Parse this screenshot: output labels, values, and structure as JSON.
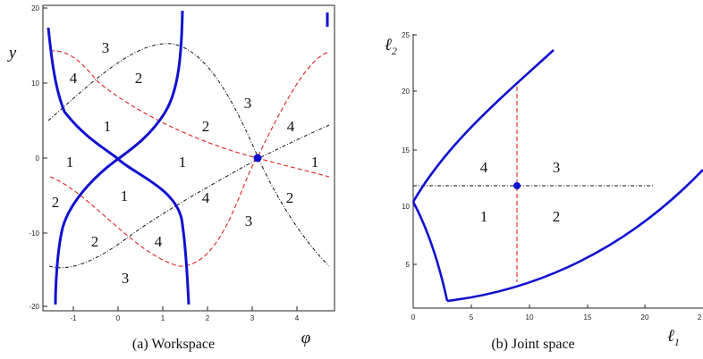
{
  "workspace": {
    "caption": "(a)  Workspace",
    "x_var": "φ",
    "y_var": "y",
    "x_ticks": [
      "-1",
      "0",
      "1",
      "2",
      "3",
      "4"
    ],
    "y_ticks": [
      "20",
      "10",
      "0",
      "-10",
      "-20"
    ],
    "regions": [
      "3",
      "4",
      "2",
      "1",
      "2",
      "3",
      "4",
      "1",
      "1",
      "1",
      "2",
      "1",
      "4",
      "2",
      "2",
      "4",
      "3",
      "3",
      "3"
    ],
    "colors": {
      "singular_curve": "#1010d0",
      "dashed_red": "#e02020",
      "dashdot_black": "#111111",
      "point": "#1010d0"
    }
  },
  "joint": {
    "caption": "(b)  Joint space",
    "x_var": "ℓ",
    "x_var_sub": "1",
    "y_var": "ℓ",
    "y_var_sub": "2",
    "x_ticks": [
      "0",
      "5",
      "10",
      "15",
      "20",
      "2"
    ],
    "y_ticks": [
      "25",
      "20",
      "15",
      "10",
      "5"
    ],
    "regions": [
      "4",
      "3",
      "1",
      "2"
    ]
  }
}
